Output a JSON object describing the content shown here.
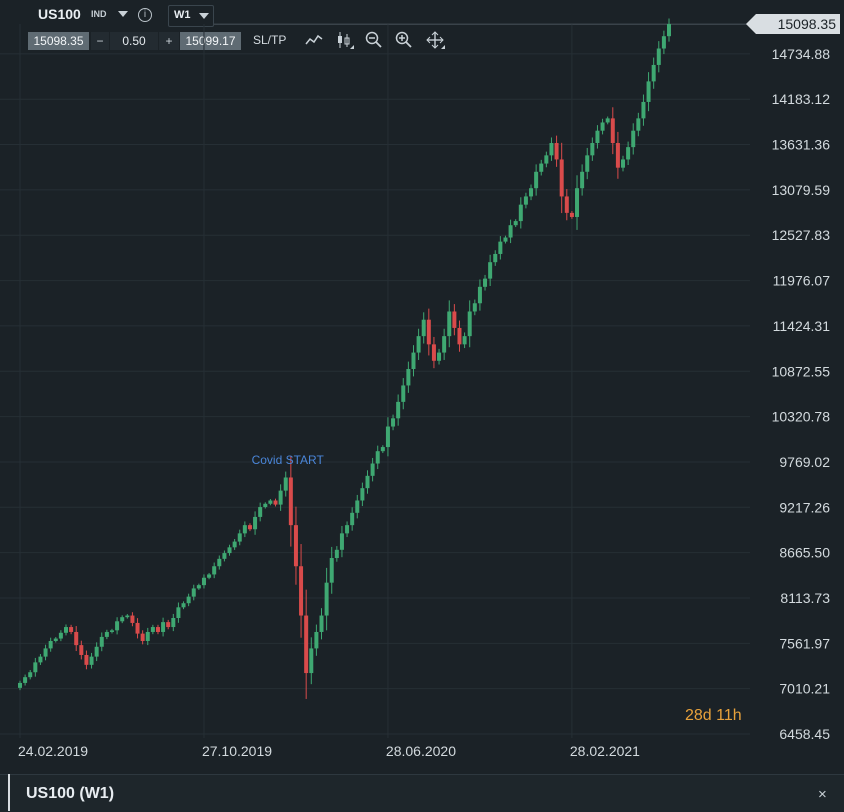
{
  "header": {
    "symbol": "US100",
    "symbol_class": "IND",
    "timeframe": "W1"
  },
  "trade_panel": {
    "sell_price": "15098.35",
    "minus": "−",
    "lot": "0.50",
    "plus": "+",
    "buy_price": "15099.17",
    "sltp": "SL/TP"
  },
  "toolbar_icons": [
    "line-chart-icon",
    "candlestick-icon",
    "zoom-out-icon",
    "zoom-in-icon",
    "move-icon"
  ],
  "current_price": "15098.35",
  "countdown": {
    "days": "28",
    "d": "d",
    "hours": "11",
    "h": "h"
  },
  "footer": {
    "title": "US100 (W1)",
    "close": "×"
  },
  "colors": {
    "up": "#3fa872",
    "down": "#d94b4b",
    "background": "#1b2227",
    "grid": "#273036",
    "annotation": "#4a86d9",
    "countdown": "#e8a23c"
  },
  "chart_data": {
    "type": "candlestick",
    "y_ticks": [
      15098.35,
      14734.88,
      14183.12,
      13631.36,
      13079.59,
      12527.83,
      11976.07,
      11424.31,
      10872.55,
      10320.78,
      9769.02,
      9217.26,
      8665.5,
      8113.73,
      7561.97,
      7010.21,
      6458.45
    ],
    "y_tick_labels": [
      "14734.88",
      "14183.12",
      "13631.36",
      "13079.59",
      "12527.83",
      "11976.07",
      "11424.31",
      "10872.55",
      "10320.78",
      "9769.02",
      "9217.26",
      "8665.50",
      "8113.73",
      "7561.97",
      "7010.21",
      "6458.45"
    ],
    "ylim": [
      6458.45,
      15098.35
    ],
    "x_tick_labels": [
      "24.02.2019",
      "27.10.2019",
      "28.06.2020",
      "28.02.2021"
    ],
    "annotation": {
      "text": "Covid START",
      "date_index": 52
    },
    "closes": [
      7080,
      7150,
      7210,
      7330,
      7400,
      7500,
      7590,
      7620,
      7690,
      7760,
      7700,
      7540,
      7420,
      7300,
      7400,
      7520,
      7640,
      7700,
      7720,
      7830,
      7880,
      7900,
      7810,
      7680,
      7590,
      7700,
      7760,
      7700,
      7820,
      7760,
      7870,
      8000,
      8050,
      8130,
      8230,
      8270,
      8360,
      8400,
      8500,
      8590,
      8660,
      8730,
      8800,
      8900,
      9000,
      8950,
      9100,
      9220,
      9260,
      9300,
      9250,
      9420,
      9580,
      9000,
      8500,
      7900,
      7200,
      7500,
      7700,
      7900,
      8300,
      8600,
      8700,
      8900,
      9000,
      9150,
      9300,
      9450,
      9600,
      9750,
      9900,
      9950,
      10200,
      10300,
      10500,
      10700,
      10900,
      11100,
      11300,
      11500,
      11200,
      11000,
      11100,
      11300,
      11600,
      11400,
      11200,
      11300,
      11600,
      11700,
      11900,
      12000,
      12200,
      12300,
      12450,
      12500,
      12650,
      12700,
      12900,
      13000,
      13100,
      13300,
      13400,
      13500,
      13650,
      13450,
      13000,
      12800,
      12750,
      13100,
      13300,
      13500,
      13650,
      13800,
      13900,
      13950,
      13650,
      13350,
      13450,
      13600,
      13800,
      13950,
      14150,
      14400,
      14600,
      14800,
      14950,
      15098
    ]
  }
}
